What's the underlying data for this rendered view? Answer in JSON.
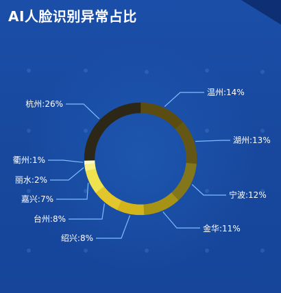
{
  "title": "AI人脸识别异常占比",
  "chart_data": {
    "type": "pie",
    "style": "donut",
    "title": "AI人脸识别异常占比",
    "slices": [
      {
        "label": "温州:14%",
        "name": "温州",
        "value": 14,
        "color": "#5b4c12"
      },
      {
        "label": "湖州:13%",
        "name": "湖州",
        "value": 13,
        "color": "#645716"
      },
      {
        "label": "宁波:12%",
        "name": "宁波",
        "value": 12,
        "color": "#83761b"
      },
      {
        "label": "金华:11%",
        "name": "金华",
        "value": 11,
        "color": "#a69315"
      },
      {
        "label": "绍兴:8%",
        "name": "绍兴",
        "value": 8,
        "color": "#d3b51b"
      },
      {
        "label": "台州:8%",
        "name": "台州",
        "value": 8,
        "color": "#e2c62b"
      },
      {
        "label": "嘉兴:7%",
        "name": "嘉兴",
        "value": 7,
        "color": "#efe24f"
      },
      {
        "label": "丽水:2%",
        "name": "丽水",
        "value": 2,
        "color": "#f8ef86"
      },
      {
        "label": "衢州:1%",
        "name": "衢州",
        "value": 1,
        "color": "#fcf8c6"
      },
      {
        "label": "杭州:26%",
        "name": "杭州",
        "value": 26,
        "color": "#2d2717"
      }
    ],
    "line_color": "#7fbfff",
    "label_color": "#ffffff",
    "legend": "none"
  }
}
